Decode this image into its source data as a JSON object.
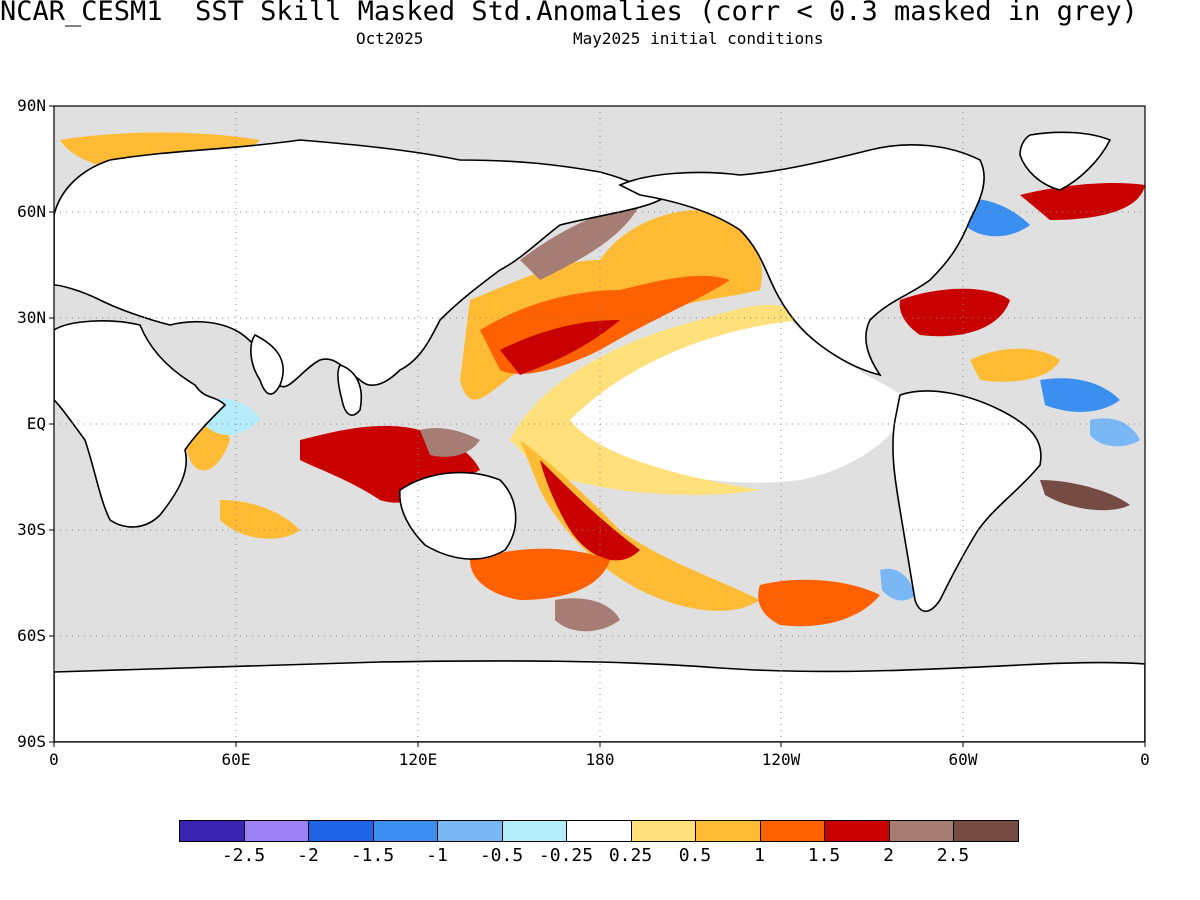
{
  "header": {
    "title": "NCAR_CESM1  SST Skill Masked Std.Anomalies (corr < 0.3 masked in grey)",
    "target_month": "Oct2025",
    "init_conditions": "May2025 initial conditions"
  },
  "map": {
    "lat_labels": [
      "90N",
      "60N",
      "30N",
      "EQ",
      "30S",
      "60S",
      "90S"
    ],
    "lon_labels": [
      "0",
      "60E",
      "120E",
      "180",
      "120W",
      "60W",
      "0"
    ],
    "mask_color": "#e0e0e0",
    "land_color": "#ffffff"
  },
  "colorbar": {
    "colors": [
      "#3a24b4",
      "#9a82f5",
      "#1f63e6",
      "#3a8ff0",
      "#7ab8f5",
      "#b4ecfa",
      "#ffffff",
      "#ffe07a",
      "#ffbb33",
      "#ff6000",
      "#c80000",
      "#a67d74",
      "#754c44"
    ],
    "labels": [
      "-2.5",
      "-2",
      "-1.5",
      "-1",
      "-0.5",
      "-0.25",
      "0.25",
      "0.5",
      "1",
      "1.5",
      "2",
      "2.5"
    ]
  }
}
